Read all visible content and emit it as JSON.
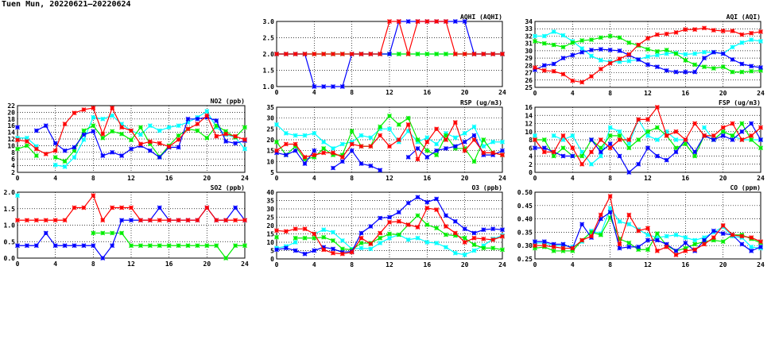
{
  "page_title": "Tuen Mun, 20220621–20220624",
  "colors": {
    "day1": "#ff0000",
    "day2": "#0000ff",
    "day3": "#00ee00",
    "day4": "#00ffff"
  },
  "chart_data": [
    {
      "type": "line",
      "title": "AQHI (AQHI)",
      "xlim": [
        0,
        24
      ],
      "ylim": [
        1,
        3
      ],
      "xticks": [
        "0",
        "4",
        "8",
        "12",
        "16",
        "20",
        "24"
      ],
      "yticks": [
        "1.0",
        "1.5",
        "2.0",
        "2.5",
        "3.0"
      ],
      "series": [
        {
          "color": "#00ffff",
          "values": [
            2,
            2,
            2,
            2,
            2,
            2,
            2,
            2,
            2,
            2,
            2,
            2,
            2,
            2,
            2,
            2,
            2,
            2,
            2,
            2,
            2,
            2,
            2,
            2,
            2
          ]
        },
        {
          "color": "#00ee00",
          "values": [
            2,
            2,
            2,
            2,
            2,
            2,
            2,
            2,
            2,
            2,
            2,
            2,
            2,
            2,
            2,
            2,
            2,
            2,
            2,
            2,
            2,
            2,
            2,
            2,
            2
          ]
        },
        {
          "color": "#0000ff",
          "values": [
            2,
            2,
            2,
            2,
            1,
            1,
            1,
            1,
            2,
            2,
            2,
            2,
            2,
            3,
            3,
            3,
            3,
            3,
            3,
            3,
            3,
            2,
            2,
            2,
            2
          ]
        },
        {
          "color": "#ff0000",
          "values": [
            2,
            2,
            2,
            2,
            2,
            2,
            2,
            2,
            2,
            2,
            2,
            2,
            3,
            3,
            2,
            3,
            3,
            3,
            3,
            2,
            2,
            2,
            2,
            2,
            2
          ]
        }
      ]
    },
    {
      "type": "line",
      "title": "AQI (AQI)",
      "xlim": [
        0,
        24
      ],
      "ylim": [
        25,
        34
      ],
      "xticks": [
        "0",
        "4",
        "8",
        "12",
        "16",
        "20",
        "24"
      ],
      "yticks": [
        "25",
        "26",
        "27",
        "28",
        "29",
        "30",
        "31",
        "32",
        "33",
        "34"
      ],
      "series": [
        {
          "color": "#00ffff",
          "values": [
            32,
            32,
            32.6,
            32.1,
            31.3,
            30.3,
            29.3,
            28.7,
            28.5,
            28.5,
            28.6,
            28.8,
            29.2,
            29.4,
            29.6,
            29.7,
            29.5,
            29.6,
            29.8,
            29.8,
            29.6,
            30.5,
            31.1,
            31.5,
            31.3
          ]
        },
        {
          "color": "#00ee00",
          "values": [
            31.3,
            31,
            30.8,
            30.5,
            31.1,
            31.4,
            31.5,
            31.8,
            32,
            31.8,
            31.1,
            30.7,
            30.2,
            29.9,
            30.1,
            29.6,
            28.7,
            28.1,
            27.8,
            27.6,
            27.8,
            27.1,
            27.1,
            27.2,
            27.3
          ]
        },
        {
          "color": "#0000ff",
          "values": [
            27.4,
            28,
            28.2,
            29,
            29.4,
            29.8,
            30.1,
            30.2,
            30.1,
            30,
            29.4,
            28.8,
            28.1,
            27.8,
            27.3,
            27.1,
            27.1,
            27.1,
            29,
            29.8,
            29.6,
            28.8,
            28.2,
            27.9,
            27.7
          ]
        },
        {
          "color": "#ff0000",
          "values": [
            27.7,
            27.3,
            27.2,
            26.8,
            25.9,
            25.7,
            26.5,
            27.5,
            28.3,
            28.9,
            29.5,
            30.8,
            31.7,
            32.2,
            32.3,
            32.5,
            32.9,
            32.9,
            33.1,
            32.8,
            32.7,
            32.7,
            32.2,
            32.4,
            32.6
          ]
        }
      ]
    },
    {
      "type": "line",
      "title": "NO2 (ppb)",
      "xlim": [
        0,
        24
      ],
      "ylim": [
        2,
        22
      ],
      "xticks": [
        "0",
        "4",
        "8",
        "12",
        "16",
        "20",
        "24"
      ],
      "yticks": [
        "2",
        "4",
        "6",
        "8",
        "10",
        "12",
        "14",
        "16",
        "18",
        "20",
        "22"
      ],
      "series": [
        {
          "color": "#00ffff",
          "values": [
            12.3,
            12.3,
            9.8,
            null,
            4.2,
            3.7,
            6.5,
            11.8,
            18.5,
            18,
            19,
            16.5,
            14.5,
            13.3,
            16,
            14.5,
            15.5,
            16,
            17,
            18.5,
            20.3,
            15.5,
            13.3,
            12.5,
            9
          ]
        },
        {
          "color": "#00ee00",
          "values": [
            9,
            10,
            7,
            null,
            6.5,
            5.3,
            8.5,
            14.5,
            16,
            12.3,
            14.3,
            13.5,
            11.7,
            15.5,
            10.5,
            6.7,
            10,
            13,
            15,
            14.5,
            12.3,
            16,
            14.3,
            12.5,
            15.5
          ]
        },
        {
          "color": "#0000ff",
          "values": [
            15.5,
            null,
            14.5,
            16,
            10.7,
            8.5,
            9.5,
            13.3,
            14.3,
            7,
            8,
            7,
            9,
            10,
            8.5,
            6.5,
            9.5,
            9.5,
            18,
            18,
            18.5,
            17.5,
            11.3,
            10.7,
            11.5
          ]
        },
        {
          "color": "#ff0000",
          "values": [
            11.7,
            11.3,
            9,
            7.5,
            8.5,
            16.5,
            19.8,
            20.8,
            21.3,
            13.5,
            21.3,
            15.5,
            14.5,
            10.5,
            11.2,
            10.7,
            9.7,
            11.8,
            15,
            16.5,
            19,
            12.8,
            13.5,
            12.8,
            11.8
          ]
        }
      ]
    },
    {
      "type": "line",
      "title": "RSP (ug/m3)",
      "xlim": [
        0,
        24
      ],
      "ylim": [
        5,
        35
      ],
      "xticks": [
        "0",
        "4",
        "8",
        "12",
        "16",
        "20",
        "24"
      ],
      "yticks": [
        "5",
        "10",
        "15",
        "20",
        "25",
        "30",
        "35"
      ],
      "series": [
        {
          "color": "#00ffff",
          "values": [
            27,
            23,
            22,
            22,
            23,
            19,
            16,
            18,
            19,
            22,
            21,
            25,
            25,
            19,
            24,
            19,
            21,
            18,
            23,
            21,
            23,
            26,
            17,
            19,
            19
          ]
        },
        {
          "color": "#00ee00",
          "values": [
            19,
            13,
            17,
            11,
            12,
            16,
            13,
            13,
            24,
            17,
            17,
            26,
            31,
            27,
            30,
            20,
            15,
            13,
            22,
            16,
            16,
            10,
            20,
            14,
            13
          ]
        },
        {
          "color": "#0000ff",
          "values": [
            14,
            13,
            15,
            9,
            15,
            null,
            7,
            10,
            15,
            9,
            8,
            6,
            null,
            null,
            12,
            16,
            12,
            15,
            16,
            17,
            19,
            22,
            13,
            13,
            15
          ]
        },
        {
          "color": "#ff0000",
          "values": [
            15,
            18,
            18,
            12,
            13,
            14,
            14,
            12,
            18,
            17,
            17,
            22,
            17,
            20,
            27,
            11,
            19,
            25,
            20,
            28,
            15,
            20,
            14,
            14,
            13
          ]
        }
      ]
    },
    {
      "type": "line",
      "title": "FSP (ug/m3)",
      "xlim": [
        0,
        24
      ],
      "ylim": [
        0,
        16
      ],
      "xticks": [
        "0",
        "4",
        "8",
        "12",
        "16",
        "20",
        "24"
      ],
      "yticks": [
        "0",
        "2",
        "4",
        "6",
        "8",
        "10",
        "12",
        "14",
        "16"
      ],
      "series": [
        {
          "color": "#00ffff",
          "values": [
            9,
            null,
            9,
            8,
            9,
            5,
            2,
            4,
            11,
            10,
            7,
            13,
            9,
            8,
            10,
            8,
            8,
            null,
            11,
            8,
            10,
            9,
            8,
            8,
            8
          ]
        },
        {
          "color": "#00ee00",
          "values": [
            8,
            8,
            4,
            6,
            4,
            4,
            8,
            6,
            9,
            9,
            6,
            8,
            10,
            11,
            9,
            6,
            7,
            4,
            9,
            8,
            10,
            9,
            12,
            8,
            6
          ]
        },
        {
          "color": "#0000ff",
          "values": [
            6,
            6,
            5,
            4,
            4,
            null,
            8,
            5,
            7,
            4,
            0,
            2,
            6,
            4,
            3,
            5,
            8,
            5,
            9,
            8,
            9,
            8,
            10,
            12,
            8
          ]
        },
        {
          "color": "#ff0000",
          "values": [
            8,
            5,
            5,
            9,
            6,
            2,
            5,
            8,
            6,
            8,
            8,
            13,
            13,
            16,
            9,
            10,
            8,
            12,
            9,
            9,
            11,
            12,
            8,
            9,
            11
          ]
        }
      ]
    },
    {
      "type": "line",
      "title": "SO2 (ppb)",
      "xlim": [
        0,
        24
      ],
      "ylim": [
        0,
        2
      ],
      "xticks": [
        "0",
        "4",
        "8",
        "12",
        "16",
        "20",
        "24"
      ],
      "yticks": [
        "0.0",
        "0.5",
        "1.0",
        "1.5",
        "2.0"
      ],
      "series": [
        {
          "color": "#00ffff",
          "values": [
            1.9,
            null,
            null,
            null,
            null,
            null,
            null,
            null,
            null,
            null,
            null,
            null,
            null,
            null,
            null,
            null,
            null,
            null,
            null,
            null,
            null,
            null,
            null,
            null,
            null
          ]
        },
        {
          "color": "#00ee00",
          "values": [
            null,
            null,
            null,
            null,
            null,
            null,
            null,
            null,
            0.76,
            0.76,
            0.76,
            0.76,
            0.38,
            0.38,
            0.38,
            0.38,
            0.38,
            0.38,
            0.38,
            0.38,
            0.38,
            0.38,
            0,
            0.38,
            0.38
          ]
        },
        {
          "color": "#0000ff",
          "values": [
            0.38,
            0.38,
            0.38,
            0.76,
            0.38,
            0.38,
            0.38,
            0.38,
            0.38,
            0,
            0.38,
            1.15,
            1.15,
            1.15,
            1.15,
            1.53,
            1.15,
            1.15,
            1.15,
            1.15,
            1.53,
            1.15,
            1.15,
            1.53,
            1.15
          ]
        },
        {
          "color": "#ff0000",
          "values": [
            1.15,
            1.15,
            1.15,
            1.15,
            1.15,
            1.15,
            1.53,
            1.53,
            1.9,
            1.15,
            1.53,
            1.53,
            1.53,
            1.15,
            1.15,
            1.15,
            1.15,
            1.15,
            1.15,
            1.15,
            1.53,
            1.15,
            1.15,
            1.15,
            1.15
          ]
        }
      ]
    },
    {
      "type": "line",
      "title": "O3 (ppb)",
      "xlim": [
        0,
        24
      ],
      "ylim": [
        0,
        40
      ],
      "xticks": [
        "0",
        "4",
        "8",
        "12",
        "16",
        "20",
        "24"
      ],
      "yticks": [
        "0",
        "5",
        "10",
        "15",
        "20",
        "25",
        "30",
        "35",
        "40"
      ],
      "series": [
        {
          "color": "#00ffff",
          "values": [
            6.5,
            7.5,
            10,
            null,
            15,
            17.5,
            16,
            11,
            6,
            6.5,
            6,
            9.5,
            12.5,
            14.5,
            11.5,
            12.5,
            10,
            9.5,
            7,
            3.5,
            2.5,
            5,
            8,
            12,
            14
          ]
        },
        {
          "color": "#00ee00",
          "values": [
            13,
            null,
            12.5,
            12.5,
            12.5,
            13,
            11,
            6,
            5.5,
            9.5,
            9.5,
            12.5,
            15,
            14.5,
            20.5,
            26,
            20.5,
            18.5,
            14.5,
            14,
            12.5,
            8.5,
            6.5,
            6.5,
            5.5
          ]
        },
        {
          "color": "#0000ff",
          "values": [
            5.5,
            6.5,
            5,
            3,
            5,
            7,
            6,
            4,
            4.5,
            15.5,
            19.5,
            24.5,
            25,
            28,
            33.5,
            37,
            34,
            36,
            26,
            22.5,
            18,
            15.5,
            17.5,
            18,
            17.5
          ]
        },
        {
          "color": "#ff0000",
          "values": [
            17,
            16.5,
            18,
            18,
            15,
            5.5,
            3.5,
            3,
            4,
            12.5,
            9,
            15.5,
            22,
            22.5,
            20.5,
            19,
            30.5,
            29.5,
            19.5,
            15.5,
            10,
            12.5,
            12,
            11.5,
            13.5
          ]
        }
      ]
    },
    {
      "type": "line",
      "title": "CO (ppm)",
      "xlim": [
        0,
        24
      ],
      "ylim": [
        0.25,
        0.5
      ],
      "xticks": [
        "0",
        "4",
        "8",
        "12",
        "16",
        "20",
        "24"
      ],
      "yticks": [
        "0.25",
        "0.30",
        "0.35",
        "0.40",
        "0.45",
        "0.50"
      ],
      "series": [
        {
          "color": "#00ffff",
          "values": [
            0.31,
            0.31,
            0.3,
            0.3,
            0.295,
            0.315,
            0.355,
            0.345,
            0.44,
            0.39,
            0.38,
            0.36,
            0.34,
            0.33,
            0.335,
            0.34,
            0.33,
            0.32,
            0.33,
            0.35,
            0.37,
            0.335,
            0.33,
            0.295,
            0.29
          ]
        },
        {
          "color": "#00ee00",
          "values": [
            0.29,
            0.295,
            0.28,
            0.28,
            0.28,
            0.32,
            0.35,
            0.34,
            0.405,
            0.325,
            0.31,
            0.285,
            0.285,
            0.345,
            0.3,
            0.28,
            0.29,
            0.305,
            0.315,
            0.32,
            0.315,
            0.34,
            0.34,
            0.325,
            0.31
          ]
        },
        {
          "color": "#0000ff",
          "values": [
            0.315,
            0.315,
            0.305,
            0.305,
            0.29,
            0.38,
            0.33,
            0.4,
            0.425,
            0.29,
            0.295,
            0.295,
            0.32,
            0.32,
            0.305,
            0.28,
            0.31,
            0.28,
            0.32,
            0.355,
            0.345,
            0.34,
            0.305,
            0.28,
            0.295
          ]
        },
        {
          "color": "#ff0000",
          "values": [
            0.3,
            0.3,
            0.295,
            0.29,
            0.29,
            0.32,
            0.335,
            0.415,
            0.485,
            0.305,
            0.415,
            0.355,
            0.365,
            0.28,
            0.295,
            0.265,
            0.28,
            0.285,
            0.305,
            0.33,
            0.375,
            0.34,
            0.335,
            0.33,
            0.315
          ]
        }
      ]
    }
  ]
}
